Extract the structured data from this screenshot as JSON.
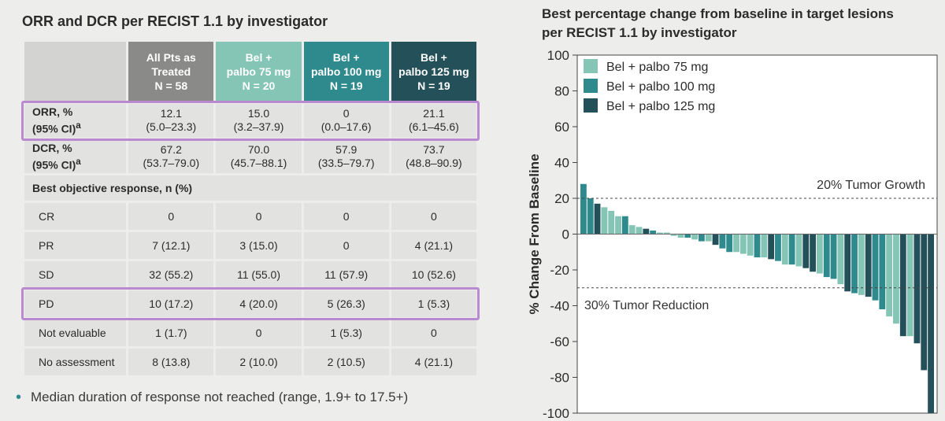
{
  "left_panel": {
    "title": "ORR and DCR per RECIST 1.1 by investigator",
    "columns": [
      {
        "line1": "All Pts as",
        "line2": "Treated",
        "line3": "N = 58"
      },
      {
        "line1": "Bel +",
        "line2": "palbo 75 mg",
        "line3": "N = 20"
      },
      {
        "line1": "Bel +",
        "line2": "palbo 100 mg",
        "line3": "N = 19"
      },
      {
        "line1": "Bel +",
        "line2": "palbo 125 mg",
        "line3": "N = 19"
      }
    ],
    "orr": {
      "label1": "ORR, %",
      "label2": "(95% CI)",
      "sup": "a",
      "values": [
        [
          "12.1",
          "(5.0–23.3)"
        ],
        [
          "15.0",
          "(3.2–37.9)"
        ],
        [
          "0",
          "(0.0–17.6)"
        ],
        [
          "21.1",
          "(6.1–45.6)"
        ]
      ]
    },
    "dcr": {
      "label1": "DCR, %",
      "label2": "(95% CI)",
      "sup": "a",
      "values": [
        [
          "67.2",
          "(53.7–79.0)"
        ],
        [
          "70.0",
          "(45.7–88.1)"
        ],
        [
          "57.9",
          "(33.5–79.7)"
        ],
        [
          "73.7",
          "(48.8–90.9)"
        ]
      ]
    },
    "best_response_heading": "Best objective response, n (%)",
    "responses": [
      {
        "label": "CR",
        "values": [
          "0",
          "0",
          "0",
          "0"
        ]
      },
      {
        "label": "PR",
        "values": [
          "7 (12.1)",
          "3 (15.0)",
          "0",
          "4 (21.1)"
        ]
      },
      {
        "label": "SD",
        "values": [
          "32 (55.2)",
          "11 (55.0)",
          "11 (57.9)",
          "10 (52.6)"
        ]
      },
      {
        "label": "PD",
        "values": [
          "10 (17.2)",
          "4 (20.0)",
          "5 (26.3)",
          "1 (5.3)"
        ]
      },
      {
        "label": "Not evaluable",
        "values": [
          "1 (1.7)",
          "0",
          "1 (5.3)",
          "0"
        ]
      },
      {
        "label": "No assessment",
        "values": [
          "8 (13.8)",
          "2 (10.0)",
          "2 (10.5)",
          "4 (21.1)"
        ]
      }
    ],
    "footnote": "Median duration of response not reached (range, 1.9+ to 17.5+)",
    "colors": {
      "all": "#8a8a88",
      "d75": "#85c5b5",
      "d100": "#2f8a8e",
      "d125": "#24505a",
      "highlight": "#b98ad0"
    }
  },
  "chart_data": {
    "type": "bar",
    "title_line1": "Best percentage change from baseline in target lesions",
    "title_line2": "per RECIST 1.1 by investigator",
    "ylabel": "% Change From Baseline",
    "xlabel": "",
    "ylim": [
      -100,
      100
    ],
    "yticks": [
      100,
      80,
      60,
      40,
      20,
      0,
      -20,
      -40,
      -60,
      -80,
      -100
    ],
    "grid": false,
    "legend_position": "top-left",
    "series": [
      {
        "name": "Bel + palbo 75 mg",
        "color": "#85c5b5"
      },
      {
        "name": "Bel + palbo 100 mg",
        "color": "#2f8a8e"
      },
      {
        "name": "Bel + palbo 125 mg",
        "color": "#24505a"
      }
    ],
    "reference_lines": [
      {
        "y": 20,
        "label": "20% Tumor Growth"
      },
      {
        "y": -30,
        "label": "30% Tumor Reduction"
      }
    ],
    "bars": [
      {
        "value": 28,
        "group": 1
      },
      {
        "value": 20,
        "group": 1
      },
      {
        "value": 17,
        "group": 2
      },
      {
        "value": 15,
        "group": 0
      },
      {
        "value": 13,
        "group": 0
      },
      {
        "value": 10,
        "group": 0
      },
      {
        "value": 10,
        "group": 1
      },
      {
        "value": 5,
        "group": 0
      },
      {
        "value": 4,
        "group": 0
      },
      {
        "value": 3,
        "group": 2
      },
      {
        "value": 2,
        "group": 1
      },
      {
        "value": 0,
        "group": 0
      },
      {
        "value": 0,
        "group": 0
      },
      {
        "value": -1,
        "group": 0
      },
      {
        "value": -2,
        "group": 0
      },
      {
        "value": -2,
        "group": 1
      },
      {
        "value": -3,
        "group": 0
      },
      {
        "value": -4,
        "group": 1
      },
      {
        "value": -4,
        "group": 0
      },
      {
        "value": -6,
        "group": 2
      },
      {
        "value": -8,
        "group": 1
      },
      {
        "value": -10,
        "group": 1
      },
      {
        "value": -10,
        "group": 0
      },
      {
        "value": -11,
        "group": 0
      },
      {
        "value": -12,
        "group": 0
      },
      {
        "value": -13,
        "group": 1
      },
      {
        "value": -13,
        "group": 0
      },
      {
        "value": -14,
        "group": 2
      },
      {
        "value": -15,
        "group": 1
      },
      {
        "value": -17,
        "group": 0
      },
      {
        "value": -17,
        "group": 1
      },
      {
        "value": -18,
        "group": 0
      },
      {
        "value": -19,
        "group": 2
      },
      {
        "value": -21,
        "group": 2
      },
      {
        "value": -22,
        "group": 0
      },
      {
        "value": -24,
        "group": 1
      },
      {
        "value": -25,
        "group": 1
      },
      {
        "value": -28,
        "group": 0
      },
      {
        "value": -32,
        "group": 2
      },
      {
        "value": -33,
        "group": 1
      },
      {
        "value": -34,
        "group": 0
      },
      {
        "value": -35,
        "group": 2
      },
      {
        "value": -37,
        "group": 1
      },
      {
        "value": -42,
        "group": 1
      },
      {
        "value": -46,
        "group": 0
      },
      {
        "value": -50,
        "group": 0
      },
      {
        "value": -57,
        "group": 2
      },
      {
        "value": -57,
        "group": 0
      },
      {
        "value": -61,
        "group": 2
      },
      {
        "value": -76,
        "group": 2
      },
      {
        "value": -100,
        "group": 2
      }
    ]
  }
}
